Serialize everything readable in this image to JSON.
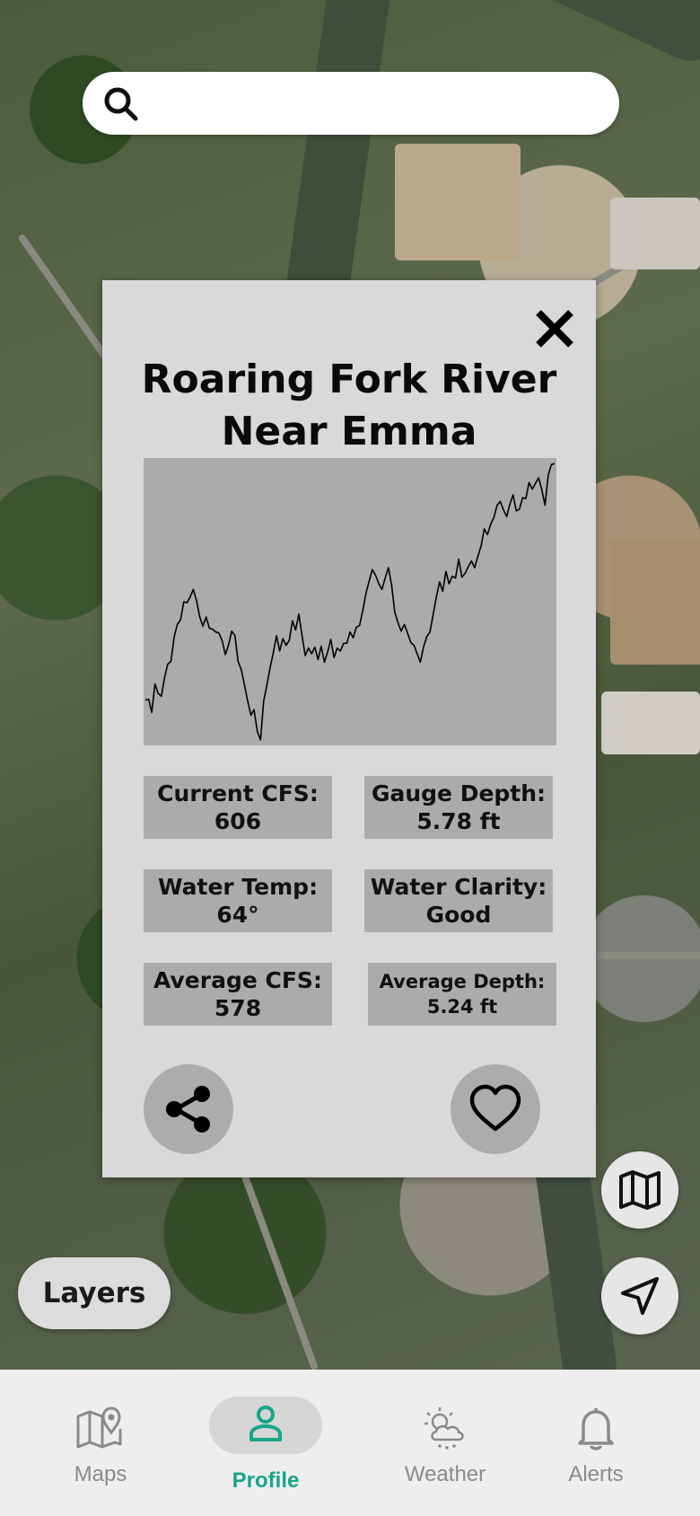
{
  "search": {
    "placeholder": "",
    "value": ""
  },
  "popup": {
    "title_line1": "Roaring Fork River",
    "title_line2": "Near Emma",
    "chart_data": {
      "type": "line",
      "title": "",
      "xlabel": "",
      "ylabel": "",
      "series": [
        {
          "values": [
            46,
            47,
            33,
            63,
            53,
            50,
            70,
            84,
            87,
            113,
            126,
            131,
            150,
            149,
            155,
            163,
            151,
            134,
            124,
            134,
            122,
            121,
            118,
            117,
            109,
            94,
            104,
            119,
            114,
            87,
            78,
            62,
            45,
            30,
            36,
            13,
            4,
            45,
            62,
            80,
            96,
            114,
            98,
            111,
            104,
            109,
            130,
            120,
            137,
            114,
            93,
            101,
            95,
            102,
            89,
            103,
            86,
            97,
            110,
            91,
            101,
            98,
            106,
            106,
            118,
            112,
            123,
            125,
            141,
            159,
            172,
            184,
            178,
            169,
            163,
            175,
            186,
            168,
            139,
            128,
            119,
            126,
            117,
            107,
            104,
            95,
            86,
            102,
            113,
            118,
            136,
            155,
            171,
            161,
            182,
            169,
            177,
            175,
            195,
            176,
            180,
            187,
            193,
            186,
            198,
            209,
            227,
            221,
            232,
            239,
            252,
            256,
            247,
            240,
            253,
            263,
            246,
            248,
            260,
            259,
            276,
            269,
            275,
            281,
            268,
            252,
            284,
            295,
            296
          ]
        }
      ],
      "ylim": [
        0,
        300
      ]
    },
    "stats": [
      {
        "label": "Current CFS:",
        "value": "606"
      },
      {
        "label": "Gauge Depth:",
        "value": "5.78 ft"
      },
      {
        "label": "Water Temp:",
        "value": "64°"
      },
      {
        "label": "Water Clarity:",
        "value": "Good"
      },
      {
        "label": "Average CFS:",
        "value": "578"
      },
      {
        "label": "Average Depth:",
        "value": "5.24 ft"
      }
    ],
    "share_icon": "share-icon",
    "favorite_icon": "heart-icon"
  },
  "map_controls": {
    "layers_label": "Layers",
    "map_icon": "map-icon",
    "locate_icon": "navigation-arrow-icon"
  },
  "nav": {
    "items": [
      {
        "label": "Maps",
        "icon": "map-pin-icon",
        "active": false
      },
      {
        "label": "Profile",
        "icon": "user-icon",
        "active": true
      },
      {
        "label": "Weather",
        "icon": "cloud-sun-icon",
        "active": false
      },
      {
        "label": "Alerts",
        "icon": "bell-icon",
        "active": false
      }
    ],
    "active_color": "#17a589"
  }
}
